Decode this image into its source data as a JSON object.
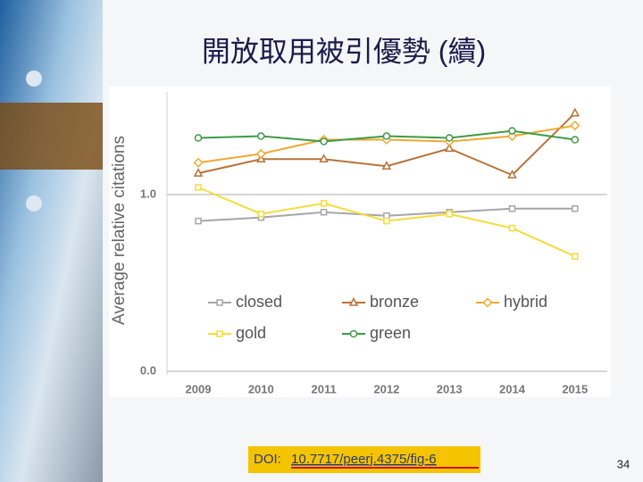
{
  "slide": {
    "title": "開放取用被引優勢 (續)",
    "doi_label": "DOI:",
    "doi": "10.7717/peerj.4375/fig-6",
    "page_number": "34"
  },
  "chart_data": {
    "type": "line",
    "y_label": "Average relative citations",
    "categories": [
      "2009",
      "2010",
      "2011",
      "2012",
      "2013",
      "2014",
      "2015"
    ],
    "series": [
      {
        "name": "closed",
        "color": "#a6a6a6",
        "marker": "square",
        "values": [
          0.85,
          0.87,
          0.9,
          0.88,
          0.9,
          0.92,
          0.92
        ]
      },
      {
        "name": "bronze",
        "color": "#b8733a",
        "marker": "triangle",
        "values": [
          1.12,
          1.2,
          1.2,
          1.16,
          1.26,
          1.11,
          1.46
        ]
      },
      {
        "name": "hybrid",
        "color": "#f0a830",
        "marker": "diamond",
        "values": [
          1.18,
          1.23,
          1.31,
          1.31,
          1.3,
          1.33,
          1.39
        ]
      },
      {
        "name": "gold",
        "color": "#f5dc3c",
        "marker": "square",
        "values": [
          1.04,
          0.89,
          0.95,
          0.85,
          0.89,
          0.81,
          0.65
        ]
      },
      {
        "name": "green",
        "color": "#3f9a48",
        "marker": "circle",
        "values": [
          1.32,
          1.33,
          1.3,
          1.33,
          1.32,
          1.36,
          1.31
        ]
      }
    ],
    "ylim": [
      -0.02,
      1.58
    ],
    "yticks": [
      {
        "value": 0,
        "label": "0.0"
      },
      {
        "value": 1,
        "label": "1.0"
      }
    ],
    "grid": true,
    "legend": "lower-left"
  }
}
